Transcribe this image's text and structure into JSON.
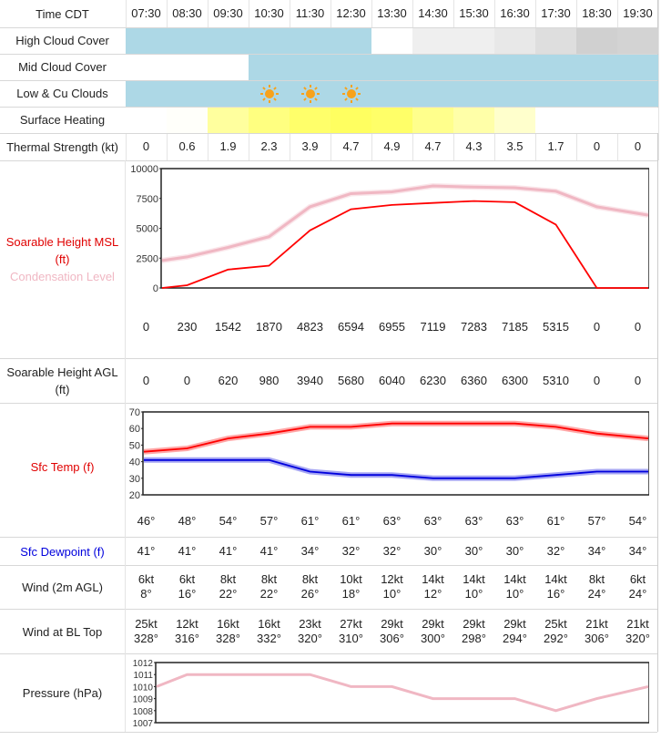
{
  "times": [
    "07:30",
    "08:30",
    "09:30",
    "10:30",
    "11:30",
    "12:30",
    "13:30",
    "14:30",
    "15:30",
    "16:30",
    "17:30",
    "18:30",
    "19:30"
  ],
  "labels": {
    "time": "Time CDT",
    "high_cloud": "High Cloud Cover",
    "mid_cloud": "Mid Cloud Cover",
    "low_cloud": "Low & Cu Clouds",
    "surface_heating": "Surface Heating",
    "thermal_strength": "Thermal Strength (kt)",
    "soarable_msl": "Soarable Height MSL",
    "soarable_msl_unit": "(ft)",
    "condensation": "Condensation Level",
    "soarable_agl": "Soarable Height AGL",
    "soarable_agl_unit": "(ft)",
    "sfc_temp": "Sfc Temp (f)",
    "sfc_dewpoint": "Sfc Dewpoint (f)",
    "wind_2m": "Wind (2m AGL)",
    "wind_bl": "Wind at BL Top",
    "pressure": "Pressure (hPa)"
  },
  "colors": {
    "cloud": "#add8e6",
    "sun": "#f7a21b",
    "msl_line": "#ff0000",
    "condensation_line": "#f0b7c3",
    "temp_line": "#ff0000",
    "dewpoint_line": "#0000dd",
    "pressure_line": "#f0b7c3"
  },
  "high_cloud_fill": [
    "#add8e6",
    "#add8e6",
    "#add8e6",
    "#add8e6",
    "#add8e6",
    "#add8e6",
    "#ffffff",
    "#efefef",
    "#efefef",
    "#e8e8e8",
    "#dedede",
    "#d0d0d0",
    "#d3d3d3"
  ],
  "mid_cloud_fill": [
    "#ffffff",
    "#ffffff",
    "#ffffff",
    "#add8e6",
    "#add8e6",
    "#add8e6",
    "#add8e6",
    "#add8e6",
    "#add8e6",
    "#add8e6",
    "#add8e6",
    "#add8e6",
    "#add8e6"
  ],
  "low_cloud_fill": [
    "#add8e6",
    "#add8e6",
    "#add8e6",
    "#add8e6",
    "#add8e6",
    "#add8e6",
    "#add8e6",
    "#add8e6",
    "#add8e6",
    "#add8e6",
    "#add8e6",
    "#add8e6",
    "#add8e6"
  ],
  "low_cloud_sun": [
    false,
    false,
    false,
    true,
    true,
    true,
    false,
    false,
    false,
    false,
    false,
    false,
    false
  ],
  "surface_heating_fill": [
    "#ffffff",
    "#fffffa",
    "#ffff9e",
    "#ffff80",
    "#ffff6a",
    "#ffff60",
    "#ffff68",
    "#ffff8c",
    "#ffffa8",
    "#ffffcc",
    "#ffffff",
    "#ffffff",
    "#ffffff"
  ],
  "thermal_strength": [
    "0",
    "0.6",
    "1.9",
    "2.3",
    "3.9",
    "4.7",
    "4.9",
    "4.7",
    "4.3",
    "3.5",
    "1.7",
    "0",
    "0"
  ],
  "soarable_msl": [
    "0",
    "230",
    "1542",
    "1870",
    "4823",
    "6594",
    "6955",
    "7119",
    "7283",
    "7185",
    "5315",
    "0",
    "0"
  ],
  "soarable_agl": [
    "0",
    "0",
    "620",
    "980",
    "3940",
    "5680",
    "6040",
    "6230",
    "6360",
    "6300",
    "5310",
    "0",
    "0"
  ],
  "sfc_temp": [
    "46°",
    "48°",
    "54°",
    "57°",
    "61°",
    "61°",
    "63°",
    "63°",
    "63°",
    "63°",
    "61°",
    "57°",
    "54°"
  ],
  "sfc_dewpoint": [
    "41°",
    "41°",
    "41°",
    "41°",
    "34°",
    "32°",
    "32°",
    "30°",
    "30°",
    "30°",
    "32°",
    "34°",
    "34°"
  ],
  "wind_2m_speed": [
    "6kt",
    "6kt",
    "8kt",
    "8kt",
    "8kt",
    "10kt",
    "12kt",
    "14kt",
    "14kt",
    "14kt",
    "14kt",
    "8kt",
    "6kt"
  ],
  "wind_2m_dir": [
    "8°",
    "16°",
    "22°",
    "22°",
    "26°",
    "18°",
    "10°",
    "12°",
    "10°",
    "10°",
    "16°",
    "24°",
    "24°"
  ],
  "wind_bl_speed": [
    "25kt",
    "12kt",
    "16kt",
    "16kt",
    "23kt",
    "27kt",
    "29kt",
    "29kt",
    "29kt",
    "29kt",
    "25kt",
    "21kt",
    "21kt"
  ],
  "wind_bl_dir": [
    "328°",
    "316°",
    "328°",
    "332°",
    "320°",
    "310°",
    "306°",
    "300°",
    "298°",
    "294°",
    "292°",
    "306°",
    "320°"
  ],
  "chart_data": [
    {
      "type": "line",
      "x": [
        "07:30",
        "08:30",
        "09:30",
        "10:30",
        "11:30",
        "12:30",
        "13:30",
        "14:30",
        "15:30",
        "16:30",
        "17:30",
        "18:30",
        "19:30"
      ],
      "ylim": [
        0,
        10000
      ],
      "yticks": [
        "0",
        "2500",
        "5000",
        "7500",
        "10000"
      ],
      "series": [
        {
          "name": "Soarable Height MSL",
          "values": [
            0,
            230,
            1542,
            1870,
            4823,
            6594,
            6955,
            7119,
            7283,
            7185,
            5315,
            0,
            0
          ]
        },
        {
          "name": "Condensation Level",
          "values": [
            2300,
            2600,
            3400,
            4300,
            6800,
            7900,
            8050,
            8550,
            8450,
            8400,
            8100,
            6800,
            6100
          ]
        }
      ]
    },
    {
      "type": "line",
      "x": [
        "07:30",
        "08:30",
        "09:30",
        "10:30",
        "11:30",
        "12:30",
        "13:30",
        "14:30",
        "15:30",
        "16:30",
        "17:30",
        "18:30",
        "19:30"
      ],
      "ylim": [
        20,
        70
      ],
      "yticks": [
        "20",
        "30",
        "40",
        "50",
        "60",
        "70"
      ],
      "series": [
        {
          "name": "Sfc Temp",
          "values": [
            46,
            48,
            54,
            57,
            61,
            61,
            63,
            63,
            63,
            63,
            61,
            57,
            54
          ]
        },
        {
          "name": "Sfc Dewpoint",
          "values": [
            41,
            41,
            41,
            41,
            34,
            32,
            32,
            30,
            30,
            30,
            32,
            34,
            34
          ]
        }
      ]
    },
    {
      "type": "line",
      "x": [
        "07:30",
        "08:30",
        "09:30",
        "10:30",
        "11:30",
        "12:30",
        "13:30",
        "14:30",
        "15:30",
        "16:30",
        "17:30",
        "18:30",
        "19:30"
      ],
      "ylim": [
        1007,
        1012
      ],
      "yticks": [
        "1007",
        "1008",
        "1009",
        "1010",
        "1011",
        "1012"
      ],
      "series": [
        {
          "name": "Pressure",
          "values": [
            1010,
            1011,
            1011,
            1011,
            1011,
            1010,
            1010,
            1009,
            1009,
            1009,
            1008,
            1009,
            1010
          ]
        }
      ]
    }
  ]
}
